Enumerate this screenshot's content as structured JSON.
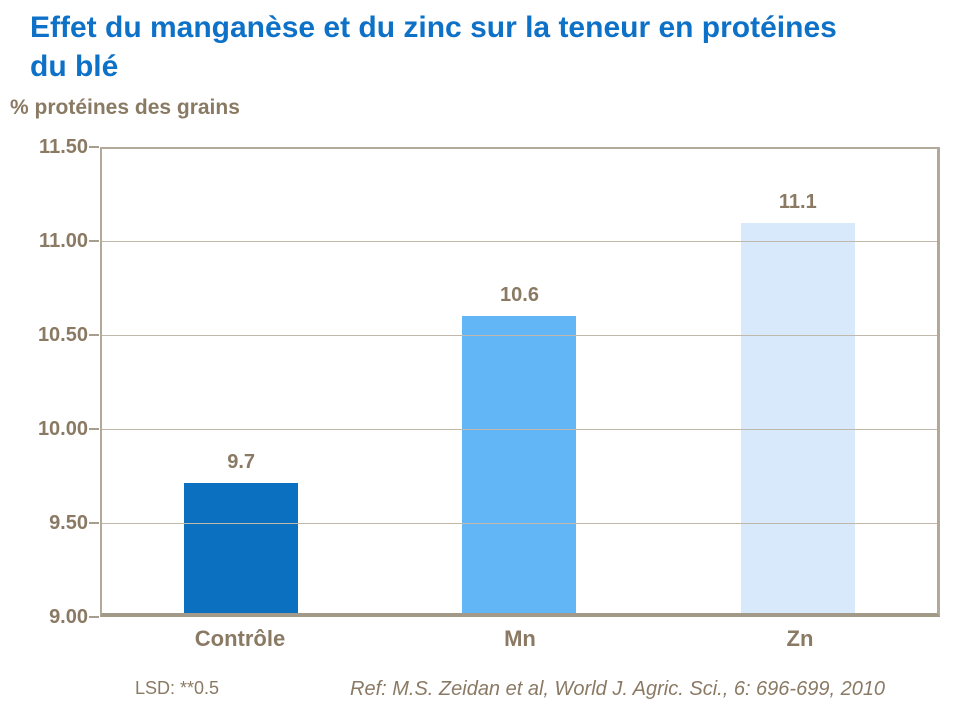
{
  "header": {
    "title_line1": "Effet du manganèse et du zinc sur la teneur en protéines",
    "title_line2": "du blé",
    "title_color": "#0d72c7"
  },
  "axis": {
    "y_title": "% protéines des grains"
  },
  "chart_data": {
    "type": "bar",
    "title": "Effet du manganèse et du zinc sur la teneur en protéines du blé",
    "ylabel": "% protéines des grains",
    "xlabel": "",
    "categories": [
      "Contrôle",
      "Mn",
      "Zn"
    ],
    "values": [
      9.7,
      10.6,
      11.1
    ],
    "value_labels": [
      "9.7",
      "10.6",
      "11.1"
    ],
    "ylim": [
      9.0,
      11.5
    ],
    "ytick_step": 0.5,
    "ytick_labels": [
      "11.50",
      "11.00",
      "10.50",
      "10.00",
      "9.50",
      "9.00"
    ],
    "grid": true,
    "legend": false,
    "bar_colors": [
      "#0b70c0",
      "#63b6f6",
      "#d7e9fb"
    ]
  },
  "footnotes": {
    "lsd": "LSD: **0.5",
    "reference": "Ref: M.S. Zeidan et al, World J. Agric. Sci., 6: 696-699, 2010"
  },
  "colors": {
    "text_brown": "#8a7a64",
    "frame": "#b3a99b",
    "bottom_axis": "#a39988",
    "gridline": "#c1b8ac",
    "background": "#ffffff"
  }
}
